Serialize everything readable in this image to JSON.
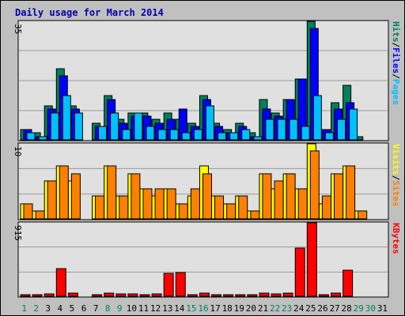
{
  "chart_data": {
    "type": "bar",
    "title": "Daily usage for March 2014",
    "colors": {
      "background": "#c0c0c0",
      "plot_background": "#e0e0e0",
      "grid": "#9a9a9a",
      "title": "#0000aa",
      "hits": "#00805c",
      "files": "#0000ff",
      "pages": "#00c0ff",
      "visits": "#ffff00",
      "sites": "#ff8000",
      "kbytes": "#ff0000",
      "weekend_label": "#00805c",
      "weekday_label": "#000000"
    },
    "categories": [
      "1",
      "2",
      "3",
      "4",
      "5",
      "6",
      "7",
      "8",
      "9",
      "10",
      "11",
      "12",
      "13",
      "14",
      "15",
      "16",
      "17",
      "18",
      "19",
      "20",
      "21",
      "22",
      "23",
      "24",
      "25",
      "26",
      "27",
      "28",
      "29",
      "30",
      "31"
    ],
    "weekend_days": [
      "1",
      "2",
      "8",
      "9",
      "15",
      "16",
      "22",
      "23",
      "29",
      "30"
    ],
    "panels": [
      {
        "name": "hits-files-pages",
        "ymax_label": "35",
        "ymax": 35,
        "legend": [
          {
            "label": "Pages",
            "color": "#00c0ff"
          },
          {
            "label": "/",
            "color": "#000000"
          },
          {
            "label": "Files",
            "color": "#0000ff"
          },
          {
            "label": "/",
            "color": "#000000"
          },
          {
            "label": "Hits",
            "color": "#00805c"
          }
        ],
        "series": [
          {
            "name": "Hits",
            "color": "#00805c",
            "values": [
              3,
              2,
              10,
              21,
              10,
              0,
              5,
              13,
              6,
              8,
              8,
              6,
              8,
              6,
              5,
              13,
              5,
              3,
              5,
              2,
              12,
              8,
              12,
              18,
              35,
              3,
              11,
              16,
              1,
              0,
              0
            ]
          },
          {
            "name": "Files",
            "color": "#0000ff",
            "values": [
              3,
              1,
              9,
              19,
              9,
              0,
              4,
              12,
              5,
              7,
              7,
              5,
              6,
              9,
              4,
              12,
              4,
              2,
              4,
              1,
              9,
              7,
              12,
              18,
              33,
              3,
              9,
              11,
              0,
              0,
              0
            ]
          },
          {
            "name": "Pages",
            "color": "#00c0ff",
            "values": [
              2,
              1,
              8,
              13,
              8,
              0,
              4,
              8,
              3,
              8,
              4,
              3,
              3,
              2,
              3,
              10,
              2,
              2,
              3,
              1,
              6,
              6,
              6,
              4,
              13,
              2,
              6,
              9,
              0,
              0,
              0
            ]
          }
        ]
      },
      {
        "name": "visits-sites",
        "ymax_label": "10",
        "ymax": 10,
        "legend": [
          {
            "label": "Sites",
            "color": "#ff8000"
          },
          {
            "label": "/",
            "color": "#000000"
          },
          {
            "label": "Visits",
            "color": "#ffff00"
          }
        ],
        "series": [
          {
            "name": "Visits",
            "color": "#ffff00",
            "values": [
              2,
              1,
              5,
              7,
              5,
              0,
              3,
              7,
              3,
              6,
              4,
              3,
              4,
              2,
              3,
              7,
              3,
              2,
              3,
              1,
              6,
              4,
              6,
              4,
              10,
              2,
              6,
              7,
              1,
              0,
              0
            ]
          },
          {
            "name": "Sites",
            "color": "#ff8000",
            "values": [
              2,
              1,
              5,
              7,
              6,
              0,
              3,
              7,
              3,
              6,
              4,
              4,
              4,
              2,
              4,
              6,
              3,
              2,
              3,
              1,
              6,
              5,
              6,
              4,
              9,
              3,
              6,
              7,
              1,
              0,
              0
            ]
          }
        ]
      },
      {
        "name": "kbytes",
        "ymax_label": "915",
        "ymax": 915,
        "legend": [
          {
            "label": "KBytes",
            "color": "#ff0000"
          }
        ],
        "series": [
          {
            "name": "KBytes",
            "color": "#ff0000",
            "values": [
              20,
              15,
              30,
              340,
              40,
              0,
              15,
              40,
              30,
              30,
              20,
              25,
              290,
              300,
              20,
              40,
              20,
              20,
              20,
              15,
              35,
              30,
              40,
              600,
              915,
              20,
              40,
              320,
              0,
              0,
              0
            ]
          }
        ]
      }
    ]
  }
}
